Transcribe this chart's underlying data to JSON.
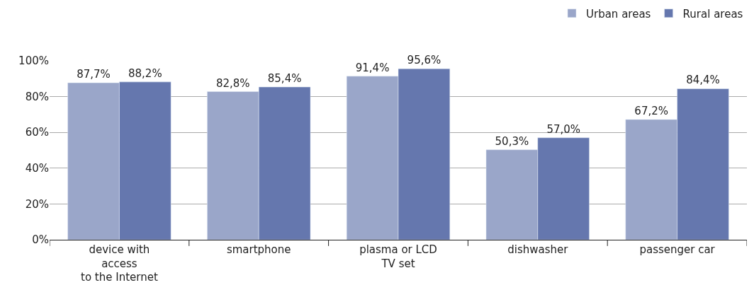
{
  "chart_data": {
    "type": "bar",
    "categories": [
      "device with\naccess\nto the Internet",
      "smartphone",
      "plasma or LCD\nTV set",
      "dishwasher",
      "passenger car"
    ],
    "series": [
      {
        "name": "Urban areas",
        "color": "#9aa6c9",
        "values": [
          87.7,
          82.8,
          91.4,
          50.3,
          67.2
        ],
        "value_labels": [
          "87,7%",
          "82,8%",
          "91,4%",
          "50,3%",
          "67,2%"
        ]
      },
      {
        "name": "Rural areas",
        "color": "#6577ae",
        "values": [
          88.2,
          85.4,
          95.6,
          57.0,
          84.4
        ],
        "value_labels": [
          "88,2%",
          "85,4%",
          "95,6%",
          "57,0%",
          "84,4%"
        ]
      }
    ],
    "ylim": [
      0,
      100
    ],
    "yticks": [
      {
        "value": 0,
        "label": "0%"
      },
      {
        "value": 20,
        "label": "20%"
      },
      {
        "value": 40,
        "label": "40%"
      },
      {
        "value": 60,
        "label": "60%"
      },
      {
        "value": 80,
        "label": "80%"
      },
      {
        "value": 100,
        "label": "100%"
      }
    ],
    "grid": "y",
    "legend": "top right"
  }
}
